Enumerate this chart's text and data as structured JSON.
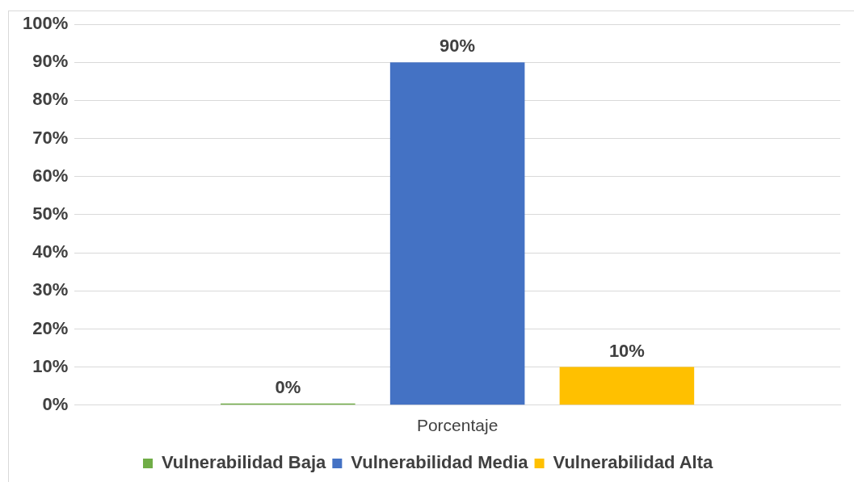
{
  "chart_data": {
    "type": "bar",
    "categories": [
      "Porcentaje"
    ],
    "series": [
      {
        "name": "Vulnerabilidad Baja",
        "color": "#70ad47",
        "values": [
          0
        ],
        "value_labels": [
          "0%"
        ]
      },
      {
        "name": "Vulnerabilidad Media",
        "color": "#4472c4",
        "values": [
          90
        ],
        "value_labels": [
          "90%"
        ]
      },
      {
        "name": "Vulnerabilidad Alta",
        "color": "#ffc000",
        "values": [
          10
        ],
        "value_labels": [
          "10%"
        ]
      }
    ],
    "ylim": [
      0,
      100
    ],
    "yticks": [
      {
        "value": 0,
        "label": "0%"
      },
      {
        "value": 10,
        "label": "10%"
      },
      {
        "value": 20,
        "label": "20%"
      },
      {
        "value": 30,
        "label": "30%"
      },
      {
        "value": 40,
        "label": "40%"
      },
      {
        "value": 50,
        "label": "50%"
      },
      {
        "value": 60,
        "label": "60%"
      },
      {
        "value": 70,
        "label": "70%"
      },
      {
        "value": 80,
        "label": "80%"
      },
      {
        "value": 90,
        "label": "90%"
      },
      {
        "value": 100,
        "label": "100%"
      }
    ],
    "grid": "y",
    "legend": "bottom"
  }
}
